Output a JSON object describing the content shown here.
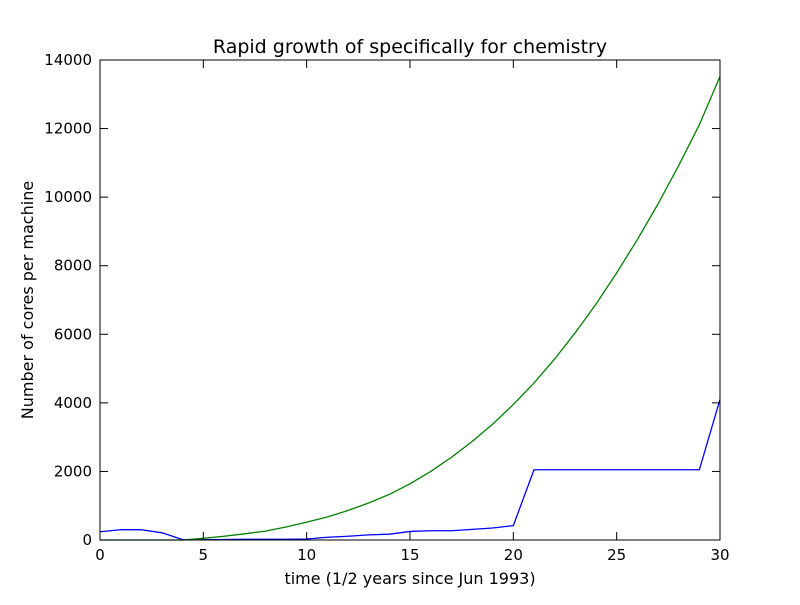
{
  "chart_data": {
    "type": "line",
    "title": "Rapid growth of specifically for chemistry",
    "xlabel": "time (1/2 years since Jun 1993)",
    "ylabel": "Number of cores per machine",
    "xlim": [
      0,
      30
    ],
    "ylim": [
      0,
      14000
    ],
    "xticks": [
      0,
      5,
      10,
      15,
      20,
      25,
      30
    ],
    "yticks": [
      0,
      2000,
      4000,
      6000,
      8000,
      10000,
      12000,
      14000
    ],
    "grid": false,
    "legend": "none",
    "series": [
      {
        "color": "#0000ff",
        "x": [
          0,
          1,
          2,
          3,
          4,
          5,
          6,
          7,
          8,
          9,
          10,
          11,
          12,
          13,
          14,
          15,
          16,
          17,
          18,
          19,
          20,
          21,
          22,
          23,
          24,
          25,
          26,
          27,
          28,
          29,
          30
        ],
        "y": [
          240,
          300,
          300,
          210,
          10,
          10,
          15,
          20,
          20,
          20,
          30,
          80,
          110,
          150,
          170,
          250,
          270,
          270,
          310,
          350,
          420,
          2048,
          2048,
          2048,
          2048,
          2048,
          2048,
          2048,
          2048,
          2048,
          4100
        ]
      },
      {
        "color": "#008000",
        "x": [
          0,
          1,
          2,
          3,
          4,
          5,
          6,
          7,
          8,
          9,
          10,
          11,
          12,
          13,
          14,
          15,
          16,
          17,
          18,
          19,
          20,
          21,
          22,
          23,
          24,
          25,
          26,
          27,
          28,
          29,
          30
        ],
        "y": [
          0,
          0,
          0,
          0,
          0,
          50,
          110,
          180,
          260,
          380,
          520,
          670,
          860,
          1080,
          1330,
          1640,
          2000,
          2410,
          2870,
          3380,
          3950,
          4580,
          5280,
          6050,
          6880,
          7790,
          8760,
          9800,
          10920,
          12110,
          13520
        ]
      }
    ]
  }
}
